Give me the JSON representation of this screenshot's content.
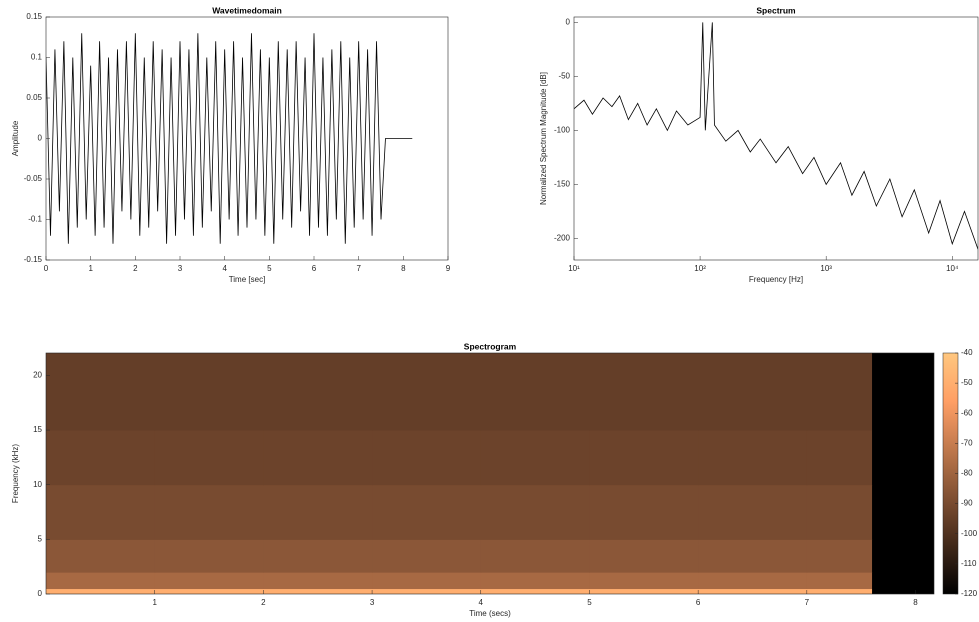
{
  "chart_data": [
    {
      "type": "line",
      "title": "Wavetimedomain",
      "xlabel": "Time [sec]",
      "ylabel": "Amplitude",
      "color": "#000000",
      "x": [
        0,
        0.1,
        0.2,
        0.3,
        0.4,
        0.5,
        0.6,
        0.7,
        0.8,
        0.9,
        1,
        1.1,
        1.2,
        1.3,
        1.4,
        1.5,
        1.6,
        1.7,
        1.8,
        1.9,
        2,
        2.1,
        2.2,
        2.3,
        2.4,
        2.5,
        2.6,
        2.7,
        2.8,
        2.9,
        3,
        3.1,
        3.2,
        3.3,
        3.4,
        3.5,
        3.6,
        3.7,
        3.8,
        3.9,
        4,
        4.1,
        4.2,
        4.3,
        4.4,
        4.5,
        4.6,
        4.7,
        4.8,
        4.9,
        5,
        5.1,
        5.2,
        5.3,
        5.4,
        5.5,
        5.6,
        5.7,
        5.8,
        5.9,
        6,
        6.1,
        6.2,
        6.3,
        6.4,
        6.5,
        6.6,
        6.7,
        6.8,
        6.9,
        7,
        7.1,
        7.2,
        7.3,
        7.4,
        7.5,
        7.6,
        8.2
      ],
      "values": [
        0.1,
        -0.12,
        0.11,
        -0.09,
        0.12,
        -0.13,
        0.1,
        -0.11,
        0.13,
        -0.1,
        0.09,
        -0.12,
        0.12,
        -0.11,
        0.1,
        -0.13,
        0.11,
        -0.09,
        0.12,
        -0.1,
        0.13,
        -0.12,
        0.1,
        -0.11,
        0.12,
        -0.09,
        0.11,
        -0.13,
        0.1,
        -0.12,
        0.12,
        -0.1,
        0.11,
        -0.12,
        0.13,
        -0.11,
        0.1,
        -0.09,
        0.12,
        -0.13,
        0.11,
        -0.1,
        0.12,
        -0.12,
        0.1,
        -0.11,
        0.13,
        -0.1,
        0.11,
        -0.12,
        0.1,
        -0.13,
        0.12,
        -0.1,
        0.11,
        -0.11,
        0.12,
        -0.09,
        0.1,
        -0.12,
        0.13,
        -0.11,
        0.1,
        -0.12,
        0.11,
        -0.1,
        0.12,
        -0.13,
        0.1,
        -0.11,
        0.12,
        -0.1,
        0.11,
        -0.12,
        0.12,
        -0.1,
        0,
        0
      ],
      "xlim": [
        0,
        9
      ],
      "ylim": [
        -0.15,
        0.15
      ],
      "xticks": [
        0,
        1,
        2,
        3,
        4,
        5,
        6,
        7,
        8,
        9
      ],
      "yticks": [
        -0.15,
        -0.1,
        -0.05,
        0,
        0.05,
        0.1,
        0.15
      ]
    },
    {
      "type": "line",
      "title": "Spectrum",
      "xlabel": "Frequency [Hz]",
      "ylabel": "Normalized Spectrum Magnitude [dB]",
      "color": "#000000",
      "xscale": "log",
      "x": [
        10,
        12,
        14,
        17,
        20,
        23,
        27,
        32,
        38,
        45,
        55,
        65,
        80,
        100,
        105,
        110,
        125,
        130,
        160,
        200,
        250,
        300,
        400,
        500,
        650,
        800,
        1000,
        1300,
        1600,
        2000,
        2500,
        3200,
        4000,
        5000,
        6500,
        8000,
        10000,
        12500,
        16000
      ],
      "values": [
        -80,
        -72,
        -85,
        -70,
        -78,
        -68,
        -90,
        -75,
        -95,
        -80,
        -100,
        -82,
        -95,
        -88,
        0,
        -100,
        0,
        -95,
        -110,
        -100,
        -120,
        -108,
        -130,
        -115,
        -140,
        -125,
        -150,
        -130,
        -160,
        -138,
        -170,
        -145,
        -180,
        -155,
        -195,
        -165,
        -205,
        -175,
        -210
      ],
      "xlim": [
        10,
        16000
      ],
      "ylim": [
        -220,
        5
      ],
      "xticks": [
        {
          "value": 10,
          "label": "10¹"
        },
        {
          "value": 100,
          "label": "10²"
        },
        {
          "value": 1000,
          "label": "10³"
        },
        {
          "value": 10000,
          "label": "10⁴"
        }
      ],
      "yticks": [
        -200,
        -150,
        -100,
        -50,
        0
      ]
    },
    {
      "type": "heatmap",
      "title": "Spectrogram",
      "xlabel": "Time (secs)",
      "ylabel": "Frequency (kHz)",
      "colormap": "copper",
      "time_edges": [
        0,
        1,
        2,
        3,
        4,
        5,
        6,
        7,
        7.6,
        8.17
      ],
      "freq_edges": [
        0,
        0.5,
        2,
        5,
        10,
        15,
        22.05
      ],
      "power": [
        [
          -50,
          -50,
          -50,
          -50,
          -50,
          -50,
          -50,
          -50,
          -120
        ],
        [
          -78,
          -78,
          -78,
          -78,
          -78,
          -78,
          -78,
          -78,
          -120
        ],
        [
          -85,
          -85,
          -85,
          -85,
          -85,
          -85,
          -85,
          -85,
          -120
        ],
        [
          -90,
          -90,
          -90,
          -90,
          -90,
          -90,
          -90,
          -90,
          -120
        ],
        [
          -93,
          -93,
          -93,
          -93,
          -93,
          -93,
          -93,
          -93,
          -120
        ],
        [
          -95,
          -95,
          -95,
          -95,
          -95,
          -95,
          -95,
          -95,
          -120
        ]
      ],
      "xlim": [
        0,
        8.17
      ],
      "ylim": [
        0,
        22.05
      ],
      "clim": [
        -120,
        -40
      ],
      "xticks": [
        1,
        2,
        3,
        4,
        5,
        6,
        7,
        8
      ],
      "yticks": [
        0,
        5,
        10,
        15,
        20
      ],
      "cticks": [
        -120,
        -110,
        -100,
        -90,
        -80,
        -70,
        -60,
        -50,
        -40
      ]
    }
  ]
}
